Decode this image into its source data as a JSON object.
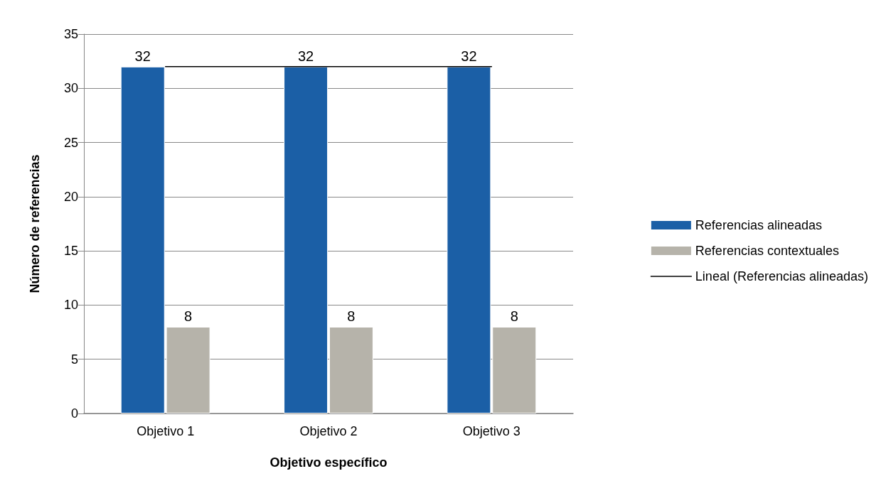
{
  "chart_data": {
    "type": "bar",
    "xlabel": "Objetivo específico",
    "ylabel": "Número de referencias",
    "categories": [
      "Objetivo 1",
      "Objetivo 2",
      "Objetivo 3"
    ],
    "series": [
      {
        "name": "Referencias alineadas",
        "color": "#1b5fa6",
        "values": [
          32,
          32,
          32
        ],
        "value_labels": [
          "32",
          "32",
          "32"
        ]
      },
      {
        "name": "Referencias contextuales",
        "color": "#b6b3aa",
        "values": [
          8,
          8,
          8
        ],
        "value_labels": [
          "8",
          "8",
          "8"
        ]
      },
      {
        "name": "Lineal (Referencias alineadas)",
        "type": "line",
        "color": "#000000",
        "values": [
          32,
          32,
          32
        ],
        "marker": "none"
      }
    ],
    "ylim": [
      0,
      35
    ],
    "yticks": [
      0,
      5,
      10,
      15,
      20,
      25,
      30,
      35
    ],
    "grid": "y",
    "legend": "right"
  }
}
